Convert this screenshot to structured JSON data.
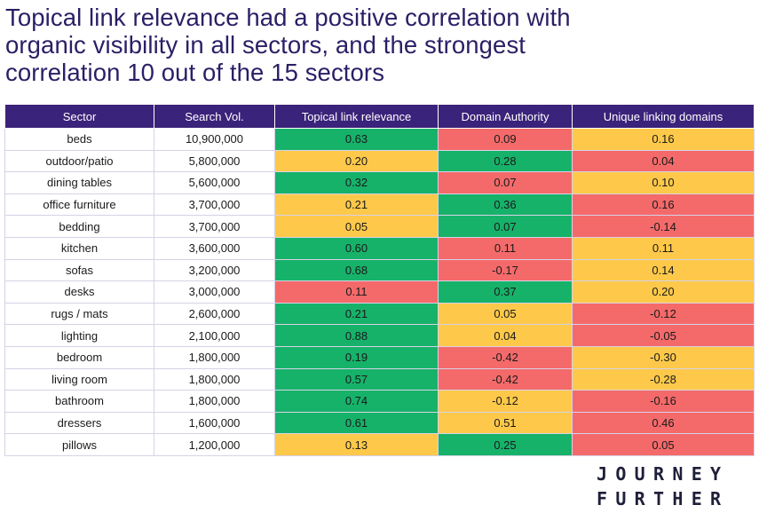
{
  "title_lines": [
    "Topical link relevance had a positive correlation with",
    "organic visibility in all sectors, and the strongest",
    "correlation 10 out of the 15 sectors"
  ],
  "columns": [
    "Sector",
    "Search Vol.",
    "Topical link relevance",
    "Domain Authority",
    "Unique linking domains"
  ],
  "rows": [
    {
      "sector": "beds",
      "search_vol": "10,900,000",
      "topical": "0.63",
      "da": "0.09",
      "uld": "0.16"
    },
    {
      "sector": "outdoor/patio",
      "search_vol": "5,800,000",
      "topical": "0.20",
      "da": "0.28",
      "uld": "0.04"
    },
    {
      "sector": "dining tables",
      "search_vol": "5,600,000",
      "topical": "0.32",
      "da": "0.07",
      "uld": "0.10"
    },
    {
      "sector": "office furniture",
      "search_vol": "3,700,000",
      "topical": "0.21",
      "da": "0.36",
      "uld": "0.16"
    },
    {
      "sector": "bedding",
      "search_vol": "3,700,000",
      "topical": "0.05",
      "da": "0.07",
      "uld": "-0.14"
    },
    {
      "sector": "kitchen",
      "search_vol": "3,600,000",
      "topical": "0.60",
      "da": "0.11",
      "uld": "0.11"
    },
    {
      "sector": "sofas",
      "search_vol": "3,200,000",
      "topical": "0.68",
      "da": "-0.17",
      "uld": "0.14"
    },
    {
      "sector": "desks",
      "search_vol": "3,000,000",
      "topical": "0.11",
      "da": "0.37",
      "uld": "0.20"
    },
    {
      "sector": "rugs / mats",
      "search_vol": "2,600,000",
      "topical": "0.21",
      "da": "0.05",
      "uld": "-0.12"
    },
    {
      "sector": "lighting",
      "search_vol": "2,100,000",
      "topical": "0.88",
      "da": "0.04",
      "uld": "-0.05"
    },
    {
      "sector": "bedroom",
      "search_vol": "1,800,000",
      "topical": "0.19",
      "da": "-0.42",
      "uld": "-0.30"
    },
    {
      "sector": "living room",
      "search_vol": "1,800,000",
      "topical": "0.57",
      "da": "-0.42",
      "uld": "-0.28"
    },
    {
      "sector": "bathroom",
      "search_vol": "1,800,000",
      "topical": "0.74",
      "da": "-0.12",
      "uld": "-0.16"
    },
    {
      "sector": "dressers",
      "search_vol": "1,600,000",
      "topical": "0.61",
      "da": "0.51",
      "uld": "0.46"
    },
    {
      "sector": "pillows",
      "search_vol": "1,200,000",
      "topical": "0.13",
      "da": "0.25",
      "uld": "0.05"
    }
  ],
  "cell_colors": {
    "topical": [
      "g",
      "y",
      "g",
      "y",
      "y",
      "g",
      "g",
      "r",
      "g",
      "g",
      "g",
      "g",
      "g",
      "g",
      "y"
    ],
    "da": [
      "r",
      "g",
      "r",
      "g",
      "g",
      "r",
      "r",
      "g",
      "y",
      "y",
      "r",
      "r",
      "y",
      "y",
      "g"
    ],
    "uld": [
      "y",
      "r",
      "y",
      "r",
      "r",
      "y",
      "y",
      "y",
      "r",
      "r",
      "y",
      "y",
      "r",
      "r",
      "r"
    ]
  },
  "logo": {
    "line1": "JOURNEY",
    "line2": "FURTHER"
  },
  "chart_data": {
    "type": "table",
    "title": "Topical link relevance had a positive correlation with organic visibility in all sectors, and the strongest correlation 10 out of the 15 sectors",
    "columns": [
      "Sector",
      "Search Vol.",
      "Topical link relevance",
      "Domain Authority",
      "Unique linking domains"
    ],
    "categories": [
      "beds",
      "outdoor/patio",
      "dining tables",
      "office furniture",
      "bedding",
      "kitchen",
      "sofas",
      "desks",
      "rugs / mats",
      "lighting",
      "bedroom",
      "living room",
      "bathroom",
      "dressers",
      "pillows"
    ],
    "search_volume": [
      10900000,
      5800000,
      5600000,
      3700000,
      3700000,
      3600000,
      3200000,
      3000000,
      2600000,
      2100000,
      1800000,
      1800000,
      1800000,
      1600000,
      1200000
    ],
    "series": [
      {
        "name": "Topical link relevance",
        "values": [
          0.63,
          0.2,
          0.32,
          0.21,
          0.05,
          0.6,
          0.68,
          0.11,
          0.21,
          0.88,
          0.19,
          0.57,
          0.74,
          0.61,
          0.13
        ]
      },
      {
        "name": "Domain Authority",
        "values": [
          0.09,
          0.28,
          0.07,
          0.36,
          0.07,
          0.11,
          -0.17,
          0.37,
          0.05,
          0.04,
          -0.42,
          -0.42,
          -0.12,
          0.51,
          0.25
        ]
      },
      {
        "name": "Unique linking domains",
        "values": [
          0.16,
          0.04,
          0.1,
          0.16,
          -0.14,
          0.11,
          0.14,
          0.2,
          -0.12,
          -0.05,
          -0.3,
          -0.28,
          -0.16,
          0.46,
          0.05
        ]
      }
    ],
    "color_legend": {
      "g": "#17b26a",
      "y": "#fec94a",
      "r": "#f46a6a"
    }
  }
}
